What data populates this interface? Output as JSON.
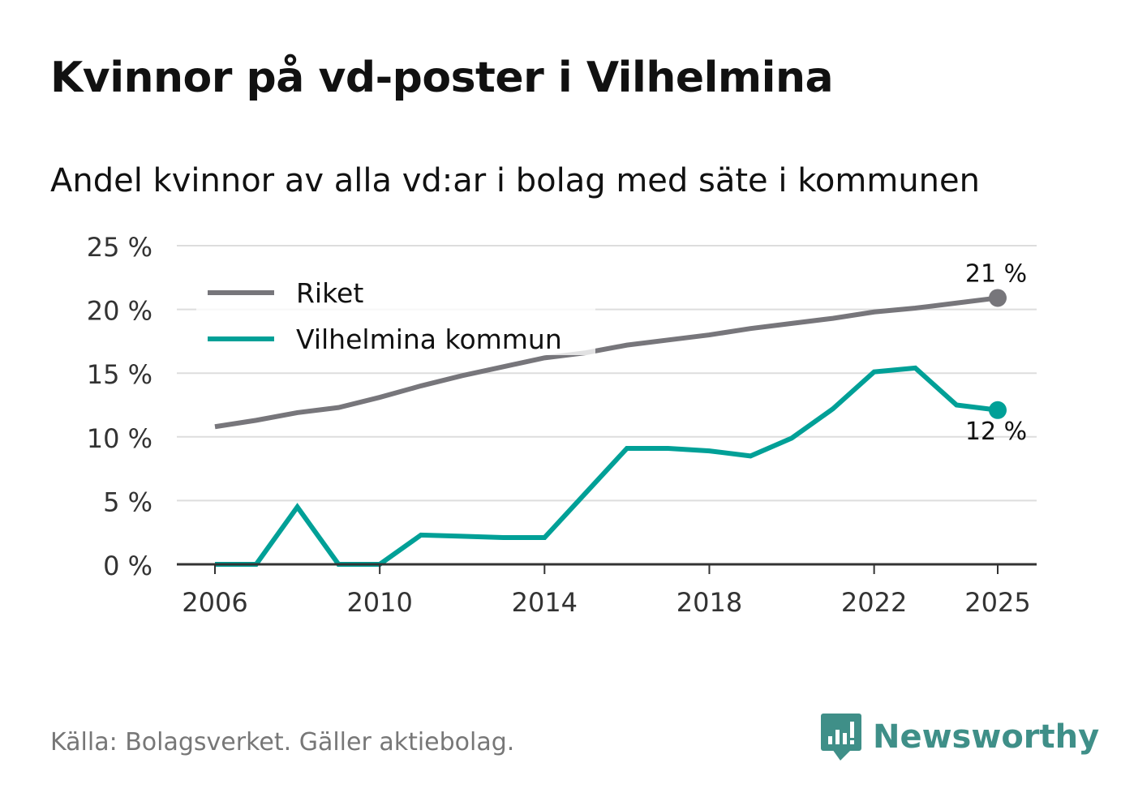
{
  "header": {
    "title": "Kvinnor på vd-poster i Vilhelmina",
    "subtitle": "Andel kvinnor av alla vd:ar i bolag med säte i kommunen"
  },
  "footer": {
    "source": "Källa: Bolagsverket. Gäller aktiebolag.",
    "brand": "Newsworthy"
  },
  "colors": {
    "riket": "#77767b",
    "kommun": "#00a097",
    "grid": "#dddddd",
    "axis": "#333333",
    "brand": "#3f8f88"
  },
  "chart_data": {
    "type": "line",
    "title": "Kvinnor på vd-poster i Vilhelmina",
    "subtitle": "Andel kvinnor av alla vd:ar i bolag med säte i kommunen",
    "xlabel": "",
    "ylabel": "",
    "x": [
      2006,
      2007,
      2008,
      2009,
      2010,
      2011,
      2012,
      2013,
      2014,
      2015,
      2016,
      2017,
      2018,
      2019,
      2020,
      2021,
      2022,
      2023,
      2024,
      2025
    ],
    "xticks": [
      2006,
      2010,
      2014,
      2018,
      2022,
      2025
    ],
    "xtick_labels": [
      "2006",
      "2010",
      "2014",
      "2018",
      "2022",
      "2025"
    ],
    "ylim": [
      0,
      25
    ],
    "yticks": [
      0,
      5,
      10,
      15,
      20,
      25
    ],
    "ytick_labels": [
      "0 %",
      "5 %",
      "10 %",
      "15 %",
      "20 %",
      "25 %"
    ],
    "grid": true,
    "legend_position": "top-left",
    "series": [
      {
        "name": "Riket",
        "color": "#77767b",
        "values": [
          10.8,
          11.3,
          11.9,
          12.3,
          13.1,
          14.0,
          14.8,
          15.5,
          16.2,
          16.6,
          17.2,
          17.6,
          18.0,
          18.5,
          18.9,
          19.3,
          19.8,
          20.1,
          20.5,
          20.9
        ],
        "end_label": "21 %"
      },
      {
        "name": "Vilhelmina kommun",
        "color": "#00a097",
        "values": [
          0,
          0,
          4.5,
          0,
          0,
          2.3,
          2.2,
          2.1,
          2.1,
          5.6,
          9.1,
          9.1,
          8.9,
          8.5,
          9.9,
          12.2,
          15.1,
          15.4,
          12.5,
          12.1
        ],
        "end_label": "12 %"
      }
    ]
  }
}
